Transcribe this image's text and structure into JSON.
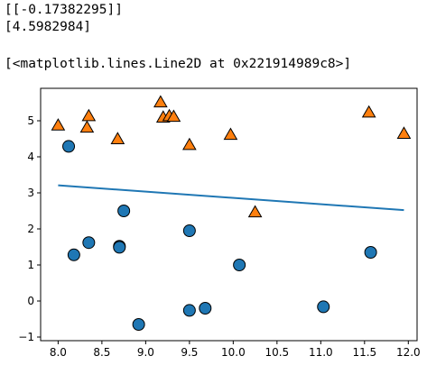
{
  "output": {
    "line1": "[[-0.17382295]]",
    "line2": "[4.5982984]",
    "line3": "[<matplotlib.lines.Line2D at 0x221914989c8>]"
  },
  "chart_data": {
    "type": "scatter",
    "xlim": [
      7.8,
      12.1
    ],
    "ylim": [
      -1.1,
      5.9
    ],
    "xticks": [
      "8.0",
      "8.5",
      "9.0",
      "9.5",
      "10.0",
      "10.5",
      "11.0",
      "11.5",
      "12.0"
    ],
    "xtick_values": [
      8.0,
      8.5,
      9.0,
      9.5,
      10.0,
      10.5,
      11.0,
      11.5,
      12.0
    ],
    "yticks": [
      "−1",
      "0",
      "1",
      "2",
      "3",
      "4",
      "5"
    ],
    "ytick_values": [
      -1,
      0,
      1,
      2,
      3,
      4,
      5
    ],
    "grid": false,
    "series": [
      {
        "marker": "circle",
        "color": "#1f77b4",
        "points": [
          [
            8.12,
            4.29
          ],
          [
            8.18,
            1.28
          ],
          [
            8.35,
            1.62
          ],
          [
            8.7,
            1.52
          ],
          [
            8.7,
            1.49
          ],
          [
            8.75,
            2.5
          ],
          [
            8.92,
            -0.65
          ],
          [
            9.5,
            1.95
          ],
          [
            9.5,
            -0.26
          ],
          [
            9.68,
            -0.2
          ],
          [
            10.07,
            1.0
          ],
          [
            11.03,
            -0.16
          ],
          [
            11.57,
            1.35
          ]
        ]
      },
      {
        "marker": "triangle",
        "color": "#ff7f0e",
        "points": [
          [
            8.0,
            4.86
          ],
          [
            8.33,
            4.8
          ],
          [
            8.35,
            5.12
          ],
          [
            8.68,
            4.48
          ],
          [
            9.17,
            5.5
          ],
          [
            9.2,
            5.08
          ],
          [
            9.27,
            5.12
          ],
          [
            9.32,
            5.1
          ],
          [
            9.5,
            4.32
          ],
          [
            9.97,
            4.6
          ],
          [
            10.25,
            2.45
          ],
          [
            11.55,
            5.22
          ],
          [
            11.95,
            4.63
          ]
        ]
      }
    ],
    "line": {
      "color": "#1f77b4",
      "x": [
        8.0,
        11.95
      ],
      "y": [
        3.208,
        2.521
      ]
    }
  }
}
